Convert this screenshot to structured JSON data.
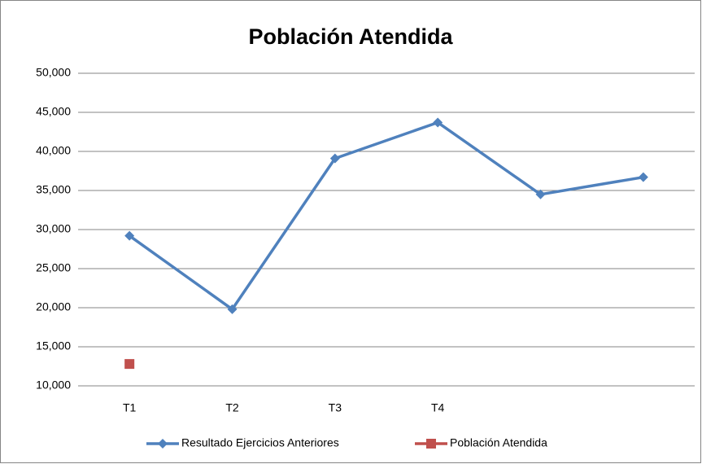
{
  "chart_data": {
    "type": "line",
    "title": "Población Atendida",
    "categories": [
      "T1",
      "T2",
      "T3",
      "T4",
      null,
      null
    ],
    "series": [
      {
        "name": "Resultado Ejercicios Anteriores",
        "color": "#4f81bd",
        "marker": "diamond",
        "values": [
          29200,
          19800,
          39100,
          43700,
          34500,
          36700
        ]
      },
      {
        "name": "Población Atendida",
        "color": "#c0504d",
        "marker": "square",
        "values": [
          12800,
          null,
          null,
          null,
          null,
          null
        ]
      }
    ],
    "ylim": [
      10000,
      50000
    ],
    "yticks": [
      {
        "value": 10000,
        "label": "10,000"
      },
      {
        "value": 15000,
        "label": "15,000"
      },
      {
        "value": 20000,
        "label": "20,000"
      },
      {
        "value": 25000,
        "label": "25,000"
      },
      {
        "value": 30000,
        "label": "30,000"
      },
      {
        "value": 35000,
        "label": "35,000"
      },
      {
        "value": 40000,
        "label": "40,000"
      },
      {
        "value": 45000,
        "label": "45,000"
      },
      {
        "value": 50000,
        "label": "50,000"
      }
    ],
    "grid": true,
    "legend": "bottom"
  }
}
